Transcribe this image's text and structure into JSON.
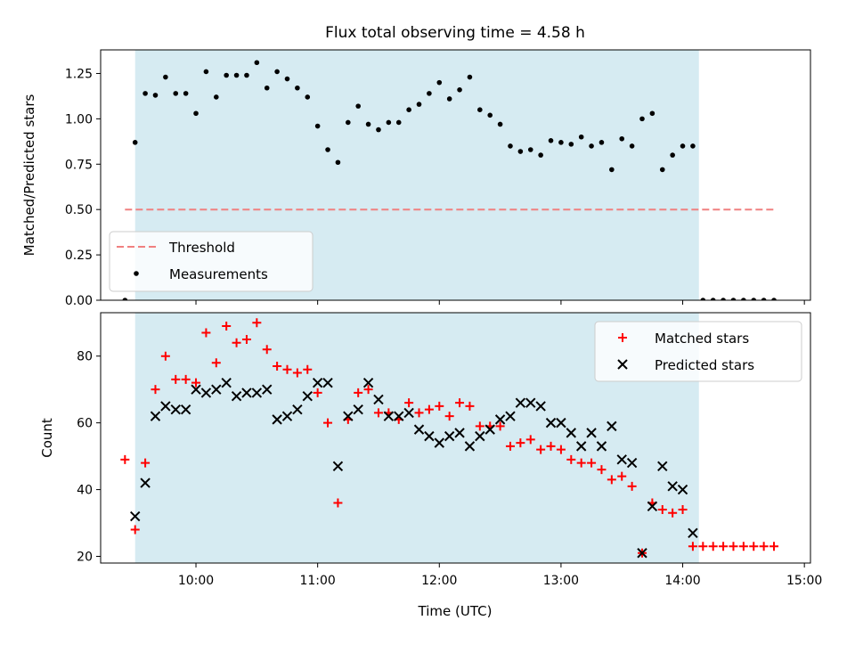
{
  "figure_title": "Flux total observing time = 4.58 h",
  "x_axis_label": "Time (UTC)",
  "colors": {
    "shade": "#add8e6",
    "threshold": "#f08080",
    "measurements": "#000000",
    "matched": "#ff0000",
    "predicted": "#000000"
  },
  "chart_data": [
    {
      "type": "scatter",
      "panel": "top",
      "ylabel": "Matched/Predicted stars",
      "xlabel": "",
      "xlim": [
        "09:13",
        "15:03"
      ],
      "ylim": [
        0,
        1.38
      ],
      "x_ticks": [
        "10:00",
        "11:00",
        "12:00",
        "13:00",
        "14:00",
        "15:00"
      ],
      "y_ticks": [
        "0.00",
        "0.25",
        "0.50",
        "0.75",
        "1.00",
        "1.25"
      ],
      "shaded_span": [
        "09:30",
        "14:08"
      ],
      "threshold": {
        "name": "Threshold",
        "value": 0.5,
        "x_range": [
          "09:25",
          "14:45"
        ]
      },
      "legend": {
        "placement": "lower-left",
        "entries": [
          "Threshold",
          "Measurements"
        ]
      },
      "series": [
        {
          "name": "Measurements",
          "x": [
            "09:25",
            "09:30",
            "09:35",
            "09:40",
            "09:45",
            "09:50",
            "09:55",
            "10:00",
            "10:05",
            "10:10",
            "10:15",
            "10:20",
            "10:25",
            "10:30",
            "10:35",
            "10:40",
            "10:45",
            "10:50",
            "10:55",
            "11:00",
            "11:05",
            "11:10",
            "11:15",
            "11:20",
            "11:25",
            "11:30",
            "11:35",
            "11:40",
            "11:45",
            "11:50",
            "11:55",
            "12:00",
            "12:05",
            "12:10",
            "12:15",
            "12:20",
            "12:25",
            "12:30",
            "12:35",
            "12:40",
            "12:45",
            "12:50",
            "12:55",
            "13:00",
            "13:05",
            "13:10",
            "13:15",
            "13:20",
            "13:25",
            "13:30",
            "13:35",
            "13:40",
            "13:45",
            "13:50",
            "13:55",
            "14:00",
            "14:05",
            "14:10",
            "14:15",
            "14:20",
            "14:25",
            "14:30",
            "14:35",
            "14:40",
            "14:45"
          ],
          "y": [
            0.0,
            0.87,
            1.14,
            1.13,
            1.23,
            1.14,
            1.14,
            1.03,
            1.26,
            1.12,
            1.24,
            1.24,
            1.24,
            1.31,
            1.17,
            1.26,
            1.22,
            1.17,
            1.12,
            0.96,
            0.83,
            0.76,
            0.98,
            1.07,
            0.97,
            0.94,
            0.98,
            0.98,
            1.05,
            1.08,
            1.14,
            1.2,
            1.11,
            1.16,
            1.23,
            1.05,
            1.02,
            0.97,
            0.85,
            0.82,
            0.83,
            0.8,
            0.88,
            0.87,
            0.86,
            0.9,
            0.85,
            0.87,
            0.72,
            0.89,
            0.85,
            1.0,
            1.03,
            0.72,
            0.8,
            0.85,
            0.85,
            0.0,
            0.0,
            0.0,
            0.0,
            0.0,
            0.0,
            0.0,
            0.0
          ]
        }
      ]
    },
    {
      "type": "scatter",
      "panel": "bottom",
      "ylabel": "Count",
      "xlabel": "Time (UTC)",
      "xlim": [
        "09:13",
        "15:03"
      ],
      "ylim": [
        18,
        93
      ],
      "x_ticks": [
        "10:00",
        "11:00",
        "12:00",
        "13:00",
        "14:00",
        "15:00"
      ],
      "y_ticks": [
        "20",
        "40",
        "60",
        "80"
      ],
      "shaded_span": [
        "09:30",
        "14:08"
      ],
      "legend": {
        "placement": "upper-right",
        "entries": [
          "Matched stars",
          "Predicted stars"
        ]
      },
      "series": [
        {
          "name": "Matched stars",
          "x": [
            "09:25",
            "09:30",
            "09:35",
            "09:40",
            "09:45",
            "09:50",
            "09:55",
            "10:00",
            "10:05",
            "10:10",
            "10:15",
            "10:20",
            "10:25",
            "10:30",
            "10:35",
            "10:40",
            "10:45",
            "10:50",
            "10:55",
            "11:00",
            "11:05",
            "11:10",
            "11:15",
            "11:20",
            "11:25",
            "11:30",
            "11:35",
            "11:40",
            "11:45",
            "11:50",
            "11:55",
            "12:00",
            "12:05",
            "12:10",
            "12:15",
            "12:20",
            "12:25",
            "12:30",
            "12:35",
            "12:40",
            "12:45",
            "12:50",
            "12:55",
            "13:00",
            "13:05",
            "13:10",
            "13:15",
            "13:20",
            "13:25",
            "13:30",
            "13:35",
            "13:40",
            "13:45",
            "13:50",
            "13:55",
            "14:00",
            "14:05",
            "14:10",
            "14:15",
            "14:20",
            "14:25",
            "14:30",
            "14:35",
            "14:40",
            "14:45"
          ],
          "y": [
            49,
            28,
            48,
            70,
            80,
            73,
            73,
            72,
            87,
            78,
            89,
            84,
            85,
            90,
            82,
            77,
            76,
            75,
            76,
            69,
            60,
            36,
            61,
            69,
            70,
            63,
            63,
            61,
            66,
            63,
            64,
            65,
            62,
            66,
            65,
            59,
            59,
            59,
            53,
            54,
            55,
            52,
            53,
            52,
            49,
            48,
            48,
            46,
            43,
            44,
            41,
            21,
            36,
            34,
            33,
            34,
            23,
            23,
            23,
            23,
            23,
            23,
            23,
            23,
            23
          ]
        },
        {
          "name": "Predicted stars",
          "x": [
            "09:30",
            "09:35",
            "09:40",
            "09:45",
            "09:50",
            "09:55",
            "10:00",
            "10:05",
            "10:10",
            "10:15",
            "10:20",
            "10:25",
            "10:30",
            "10:35",
            "10:40",
            "10:45",
            "10:50",
            "10:55",
            "11:00",
            "11:05",
            "11:10",
            "11:15",
            "11:20",
            "11:25",
            "11:30",
            "11:35",
            "11:40",
            "11:45",
            "11:50",
            "11:55",
            "12:00",
            "12:05",
            "12:10",
            "12:15",
            "12:20",
            "12:25",
            "12:30",
            "12:35",
            "12:40",
            "12:45",
            "12:50",
            "12:55",
            "13:00",
            "13:05",
            "13:10",
            "13:15",
            "13:20",
            "13:25",
            "13:30",
            "13:35",
            "13:40",
            "13:45",
            "13:50",
            "13:55",
            "14:00",
            "14:05"
          ],
          "y": [
            32,
            42,
            62,
            65,
            64,
            64,
            70,
            69,
            70,
            72,
            68,
            69,
            69,
            70,
            61,
            62,
            64,
            68,
            72,
            72,
            47,
            62,
            64,
            72,
            67,
            62,
            62,
            63,
            58,
            56,
            54,
            56,
            57,
            53,
            56,
            58,
            61,
            62,
            66,
            66,
            65,
            60,
            60,
            57,
            53,
            57,
            53,
            59,
            49,
            48,
            21,
            35,
            47,
            41,
            40,
            27
          ]
        }
      ]
    }
  ]
}
